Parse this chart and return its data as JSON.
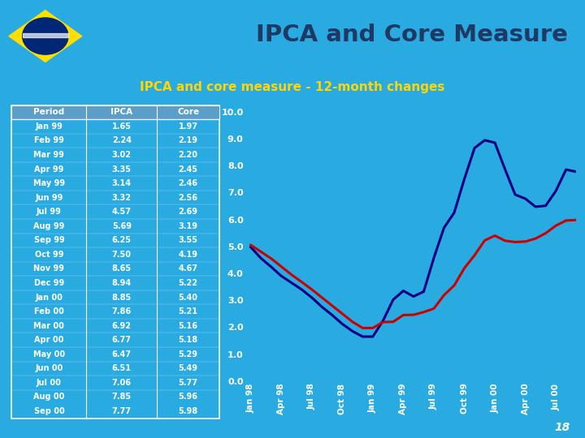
{
  "title_main": "IPCA and Core Measure",
  "subtitle": "IPCA and core measure - 12-month changes",
  "bg_color": "#29ABE2",
  "header_bg": "#C5DCF0",
  "title_color": "#1F3864",
  "subtitle_color": "#FFD700",
  "periods": [
    "Jan 99",
    "Feb 99",
    "Mar 99",
    "Apr 99",
    "May 99",
    "Jun 99",
    "Jul 99",
    "Aug 99",
    "Sep 99",
    "Oct 99",
    "Nov 99",
    "Dec 99",
    "Jan 00",
    "Feb 00",
    "Mar 00",
    "Apr 00",
    "May 00",
    "Jun 00",
    "Jul 00",
    "Aug 00",
    "Sep 00"
  ],
  "ipca_table": [
    1.65,
    2.24,
    3.02,
    3.35,
    3.14,
    3.32,
    4.57,
    5.69,
    6.25,
    7.5,
    8.65,
    8.94,
    8.85,
    7.86,
    6.92,
    6.77,
    6.47,
    6.51,
    7.06,
    7.85,
    7.77
  ],
  "core_table": [
    1.97,
    2.19,
    2.2,
    2.45,
    2.46,
    2.56,
    2.69,
    3.19,
    3.55,
    4.19,
    4.67,
    5.22,
    5.4,
    5.21,
    5.16,
    5.18,
    5.29,
    5.49,
    5.77,
    5.96,
    5.98
  ],
  "ipca_chart": [
    4.97,
    4.56,
    4.24,
    3.9,
    3.65,
    3.4,
    3.1,
    2.75,
    2.45,
    2.12,
    1.85,
    1.65,
    1.65,
    2.24,
    3.02,
    3.35,
    3.14,
    3.32,
    4.57,
    5.69,
    6.25,
    7.5,
    8.65,
    8.94,
    8.85,
    7.86,
    6.92,
    6.77,
    6.47,
    6.51,
    7.06,
    7.85,
    7.77
  ],
  "core_chart": [
    5.05,
    4.8,
    4.55,
    4.25,
    3.95,
    3.68,
    3.4,
    3.1,
    2.8,
    2.5,
    2.2,
    1.97,
    1.97,
    2.19,
    2.2,
    2.45,
    2.46,
    2.56,
    2.69,
    3.19,
    3.55,
    4.19,
    4.67,
    5.22,
    5.4,
    5.21,
    5.16,
    5.18,
    5.29,
    5.49,
    5.77,
    5.96,
    5.98
  ],
  "x_indices": [
    0,
    1,
    2,
    3,
    4,
    5,
    6,
    7,
    8,
    9,
    10,
    11,
    12,
    13,
    14,
    15,
    16,
    17,
    18,
    19,
    20,
    21,
    22,
    23,
    24,
    25,
    26,
    27,
    28,
    29,
    30,
    31,
    32
  ],
  "x_tick_labels": [
    "Jan 98",
    "Apr 98",
    "Jul 98",
    "Oct 98",
    "Jan 99",
    "Apr 99",
    "Jul 99",
    "Oct 99",
    "Jan 00",
    "Apr 00",
    "Jul 00"
  ],
  "x_tick_positions": [
    0,
    3,
    6,
    9,
    12,
    15,
    18,
    21,
    24,
    27,
    30
  ],
  "ylim": [
    0.0,
    10.0
  ],
  "yticks": [
    0.0,
    1.0,
    2.0,
    3.0,
    4.0,
    5.0,
    6.0,
    7.0,
    8.0,
    9.0,
    10.0
  ],
  "ipca_color": "#000080",
  "core_color": "#CC0000",
  "page_num": "18"
}
